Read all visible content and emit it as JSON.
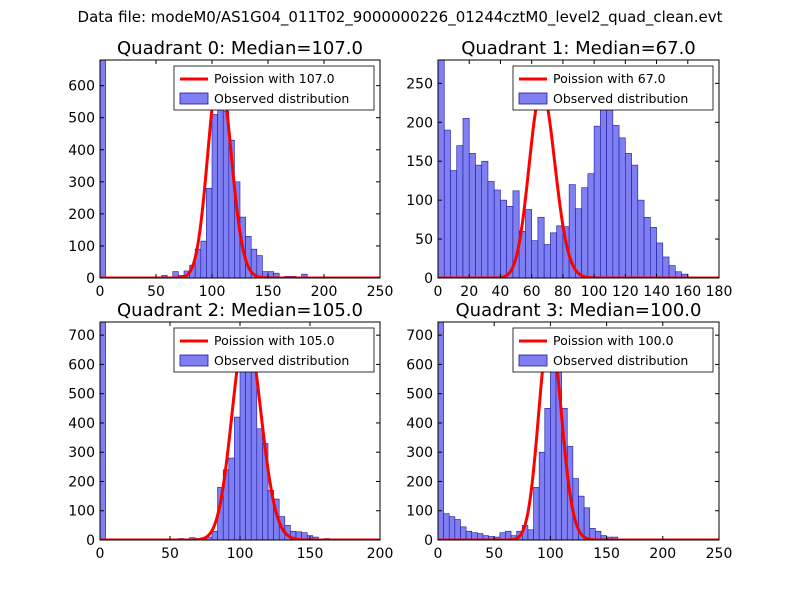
{
  "suptitle": "Data file: modeM0/AS1G04_011T02_9000000226_01244cztM0_level2_quad_clean.evt",
  "colors": {
    "hist_fill": "#7f7ff2",
    "hist_edge": "#1a1aa0",
    "poisson": "#ff0000",
    "axes": "#000000"
  },
  "chart_data": [
    {
      "type": "bar",
      "title": "Quadrant 0: Median=107.0",
      "xlim": [
        0,
        250
      ],
      "ylim": [
        0,
        680
      ],
      "xticks": [
        0,
        50,
        100,
        150,
        200,
        250
      ],
      "yticks": [
        0,
        100,
        200,
        300,
        400,
        500,
        600
      ],
      "legend": {
        "position": "top-right",
        "line_label": "Poission with 107.0",
        "bar_label": "Observed distribution"
      },
      "poisson_lambda": 107,
      "poisson_peak": 645,
      "bin_width": 5,
      "bins": [
        [
          0,
          680
        ],
        [
          55,
          8
        ],
        [
          65,
          20
        ],
        [
          70,
          8
        ],
        [
          75,
          22
        ],
        [
          80,
          40
        ],
        [
          85,
          90
        ],
        [
          90,
          115
        ],
        [
          95,
          280
        ],
        [
          100,
          510
        ],
        [
          105,
          610
        ],
        [
          110,
          520
        ],
        [
          115,
          430
        ],
        [
          120,
          300
        ],
        [
          125,
          190
        ],
        [
          130,
          130
        ],
        [
          135,
          90
        ],
        [
          140,
          70
        ],
        [
          145,
          20
        ],
        [
          150,
          20
        ],
        [
          155,
          15
        ],
        [
          165,
          5
        ],
        [
          170,
          5
        ],
        [
          180,
          12
        ]
      ]
    },
    {
      "type": "bar",
      "title": "Quadrant 1: Median=67.0",
      "xlim": [
        0,
        180
      ],
      "ylim": [
        0,
        280
      ],
      "xticks": [
        0,
        20,
        40,
        60,
        80,
        100,
        120,
        140,
        160,
        180
      ],
      "yticks": [
        0,
        50,
        100,
        150,
        200,
        250
      ],
      "legend": {
        "position": "top-right",
        "line_label": "Poission with 67.0",
        "bar_label": "Observed distribution"
      },
      "poisson_lambda": 67,
      "poisson_peak": 242,
      "bin_width": 4,
      "bins": [
        [
          0,
          280
        ],
        [
          4,
          190
        ],
        [
          8,
          138
        ],
        [
          12,
          170
        ],
        [
          16,
          205
        ],
        [
          20,
          160
        ],
        [
          24,
          145
        ],
        [
          28,
          150
        ],
        [
          32,
          124
        ],
        [
          36,
          113
        ],
        [
          40,
          100
        ],
        [
          44,
          92
        ],
        [
          48,
          112
        ],
        [
          52,
          60
        ],
        [
          56,
          88
        ],
        [
          60,
          48
        ],
        [
          64,
          78
        ],
        [
          68,
          43
        ],
        [
          72,
          58
        ],
        [
          76,
          67
        ],
        [
          80,
          66
        ],
        [
          84,
          120
        ],
        [
          88,
          89
        ],
        [
          92,
          116
        ],
        [
          96,
          134
        ],
        [
          100,
          195
        ],
        [
          104,
          220
        ],
        [
          108,
          250
        ],
        [
          112,
          196
        ],
        [
          116,
          180
        ],
        [
          120,
          160
        ],
        [
          124,
          145
        ],
        [
          128,
          100
        ],
        [
          132,
          78
        ],
        [
          136,
          65
        ],
        [
          140,
          45
        ],
        [
          144,
          27
        ],
        [
          148,
          16
        ],
        [
          152,
          8
        ],
        [
          156,
          5
        ]
      ]
    },
    {
      "type": "bar",
      "title": "Quadrant 2: Median=105.0",
      "xlim": [
        0,
        200
      ],
      "ylim": [
        0,
        745
      ],
      "xticks": [
        0,
        50,
        100,
        150,
        200
      ],
      "yticks": [
        0,
        100,
        200,
        300,
        400,
        500,
        600,
        700
      ],
      "legend": {
        "position": "top-right",
        "line_label": "Poission with 105.0",
        "bar_label": "Observed distribution"
      },
      "poisson_lambda": 105,
      "poisson_peak": 720,
      "bin_width": 4,
      "bins": [
        [
          0,
          745
        ],
        [
          56,
          5
        ],
        [
          64,
          8
        ],
        [
          68,
          5
        ],
        [
          72,
          8
        ],
        [
          76,
          10
        ],
        [
          80,
          30
        ],
        [
          84,
          180
        ],
        [
          88,
          240
        ],
        [
          92,
          280
        ],
        [
          96,
          420
        ],
        [
          100,
          690
        ],
        [
          104,
          650
        ],
        [
          108,
          700
        ],
        [
          112,
          380
        ],
        [
          116,
          330
        ],
        [
          120,
          170
        ],
        [
          124,
          140
        ],
        [
          128,
          80
        ],
        [
          132,
          50
        ],
        [
          136,
          30
        ],
        [
          140,
          28
        ],
        [
          144,
          25
        ],
        [
          148,
          15
        ],
        [
          152,
          10
        ],
        [
          160,
          5
        ]
      ]
    },
    {
      "type": "bar",
      "title": "Quadrant 3: Median=100.0",
      "xlim": [
        0,
        250
      ],
      "ylim": [
        0,
        745
      ],
      "xticks": [
        0,
        50,
        100,
        150,
        200,
        250
      ],
      "yticks": [
        0,
        100,
        200,
        300,
        400,
        500,
        600,
        700
      ],
      "legend": {
        "position": "top-right",
        "line_label": "Poission with 100.0",
        "bar_label": "Observed distribution"
      },
      "poisson_lambda": 100,
      "poisson_peak": 720,
      "bin_width": 5,
      "bins": [
        [
          0,
          745
        ],
        [
          5,
          90
        ],
        [
          10,
          80
        ],
        [
          15,
          70
        ],
        [
          20,
          45
        ],
        [
          25,
          30
        ],
        [
          30,
          25
        ],
        [
          35,
          22
        ],
        [
          40,
          15
        ],
        [
          45,
          12
        ],
        [
          50,
          10
        ],
        [
          55,
          25
        ],
        [
          60,
          30
        ],
        [
          65,
          15
        ],
        [
          70,
          30
        ],
        [
          75,
          50
        ],
        [
          80,
          35
        ],
        [
          85,
          180
        ],
        [
          90,
          300
        ],
        [
          95,
          450
        ],
        [
          100,
          700
        ],
        [
          105,
          650
        ],
        [
          110,
          450
        ],
        [
          115,
          320
        ],
        [
          120,
          210
        ],
        [
          125,
          150
        ],
        [
          130,
          110
        ],
        [
          135,
          40
        ],
        [
          140,
          30
        ],
        [
          145,
          15
        ],
        [
          150,
          10
        ],
        [
          155,
          10
        ]
      ]
    }
  ]
}
